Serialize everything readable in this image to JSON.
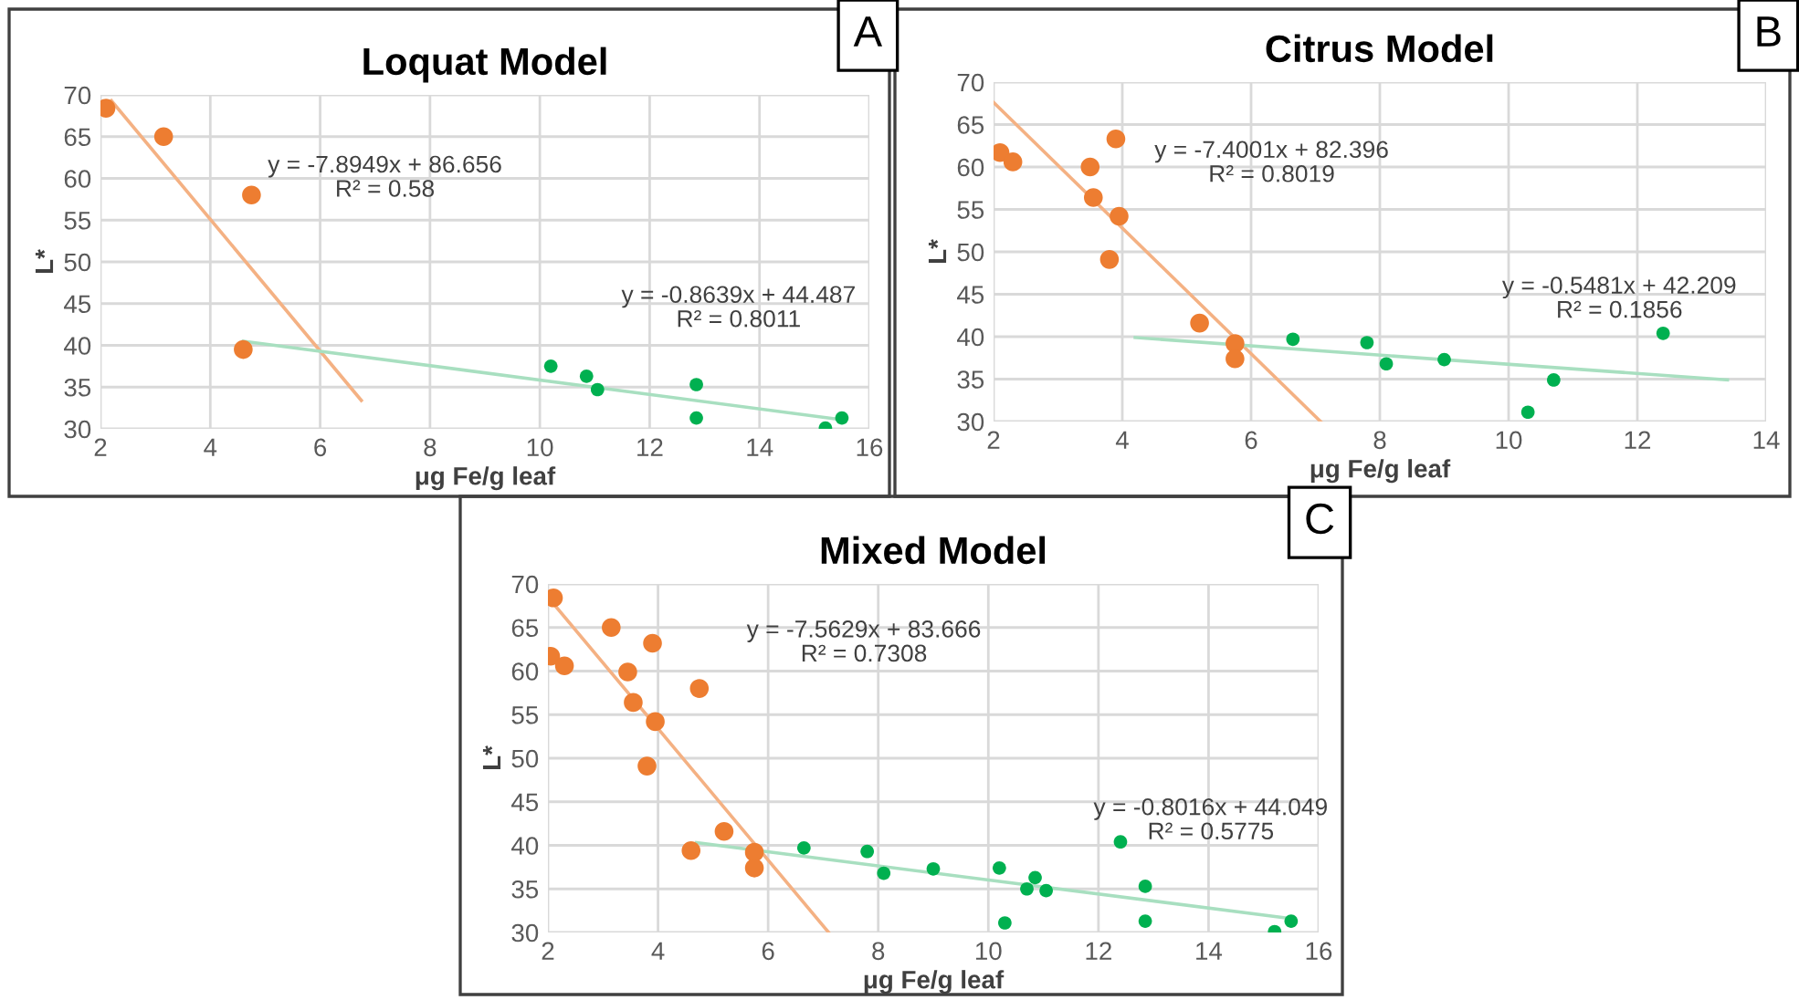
{
  "chart_data": [
    {
      "type": "scatter",
      "title": "Loquat Model",
      "xlabel": "μg Fe/g leaf",
      "ylabel": "L*",
      "xlim": [
        2,
        16
      ],
      "xticks": [
        2,
        4,
        6,
        8,
        10,
        12,
        14,
        16
      ],
      "ylim": [
        30,
        70
      ],
      "yticks": [
        30,
        35,
        40,
        45,
        50,
        55,
        60,
        65,
        70
      ],
      "grid": true,
      "legend": false,
      "annotations": [
        "A",
        "y = -7.8949x + 86.656\nR² = 0.58",
        "y = -0.8639x + 44.487\nR² = 0.8011"
      ],
      "series": [
        {
          "type": "line",
          "marker": "none",
          "color": "#f4b183",
          "x": [
            2.2,
            6.75
          ],
          "values": [
            69.3,
            33.4
          ]
        },
        {
          "type": "line",
          "marker": "none",
          "color": "#a8dfc0",
          "x": [
            4.6,
            15.5
          ],
          "values": [
            40.5,
            31.1
          ]
        },
        {
          "marker": "circle",
          "color": "#ed7d31",
          "x": [
            2.1,
            3.15,
            4.75,
            4.6
          ],
          "values": [
            68.4,
            65,
            58,
            39.5
          ]
        },
        {
          "marker": "circle",
          "color": "#00b050",
          "x": [
            10.2,
            10.85,
            11.05,
            12.85,
            12.85,
            15.2,
            15.5
          ],
          "values": [
            37.5,
            36.3,
            34.7,
            35.3,
            31.3,
            30.1,
            31.3
          ]
        }
      ]
    },
    {
      "type": "scatter",
      "title": "Citrus Model",
      "xlabel": "μg Fe/g leaf",
      "ylabel": "L*",
      "xlim": [
        2,
        14
      ],
      "xticks": [
        2,
        4,
        6,
        8,
        10,
        12,
        14
      ],
      "ylim": [
        30,
        70
      ],
      "yticks": [
        30,
        35,
        40,
        45,
        50,
        55,
        60,
        65,
        70
      ],
      "grid": true,
      "legend": false,
      "annotations": [
        "B",
        "y = -7.4001x + 82.396\nR² = 0.8019",
        "y = -0.5481x + 42.209\nR² = 0.1856"
      ],
      "series": [
        {
          "type": "line",
          "marker": "none",
          "color": "#f4b183",
          "x": [
            2,
            7.08
          ],
          "values": [
            67.6,
            30
          ]
        },
        {
          "type": "line",
          "marker": "none",
          "color": "#a8dfc0",
          "x": [
            4.2,
            13.4
          ],
          "values": [
            39.9,
            34.9
          ]
        },
        {
          "marker": "circle",
          "color": "#ed7d31",
          "x": [
            2.1,
            2.3,
            3.5,
            3.55,
            3.9,
            3.95,
            3.8,
            5.2,
            5.75,
            5.75
          ],
          "values": [
            61.7,
            60.6,
            60,
            56.4,
            63.3,
            54.2,
            49.1,
            41.6,
            39.2,
            37.4
          ]
        },
        {
          "marker": "circle",
          "color": "#00b050",
          "x": [
            6.65,
            7.8,
            8.1,
            9.0,
            10.3,
            10.7,
            12.4
          ],
          "values": [
            39.7,
            39.3,
            36.8,
            37.3,
            31.1,
            34.9,
            40.4
          ]
        }
      ]
    },
    {
      "type": "scatter",
      "title": "Mixed Model",
      "xlabel": "μg Fe/g leaf",
      "ylabel": "L*",
      "xlim": [
        2,
        16
      ],
      "xticks": [
        2,
        4,
        6,
        8,
        10,
        12,
        14,
        16
      ],
      "ylim": [
        30,
        70
      ],
      "yticks": [
        30,
        35,
        40,
        45,
        50,
        55,
        60,
        65,
        70
      ],
      "grid": true,
      "legend": false,
      "annotations": [
        "C",
        "y = -7.5629x + 83.666\nR² = 0.7308",
        "y = -0.8016x + 44.049\nR² = 0.5775"
      ],
      "series": [
        {
          "type": "line",
          "marker": "none",
          "color": "#f4b183",
          "x": [
            2,
            7.1
          ],
          "values": [
            68.5,
            30
          ]
        },
        {
          "type": "line",
          "marker": "none",
          "color": "#a8dfc0",
          "x": [
            4.7,
            15.5
          ],
          "values": [
            40.3,
            31.6
          ]
        },
        {
          "marker": "circle",
          "color": "#ed7d31",
          "x": [
            2.1,
            3.15,
            4.75,
            4.6,
            2.05,
            2.3,
            3.45,
            3.55,
            3.9,
            3.95,
            3.8,
            5.2,
            5.75,
            5.75
          ],
          "values": [
            68.4,
            65,
            58,
            39.4,
            61.7,
            60.6,
            59.9,
            56.4,
            63.2,
            54.2,
            49.1,
            41.6,
            39.2,
            37.4
          ]
        },
        {
          "marker": "circle",
          "color": "#00b050",
          "x": [
            6.65,
            7.8,
            8.1,
            9.0,
            10.2,
            10.3,
            10.7,
            10.85,
            11.05,
            12.4,
            12.85,
            12.85,
            15.2,
            15.5
          ],
          "values": [
            39.7,
            39.3,
            36.8,
            37.3,
            37.4,
            31.1,
            35.0,
            36.3,
            34.8,
            40.4,
            35.3,
            31.3,
            30.1,
            31.3
          ]
        }
      ]
    }
  ]
}
